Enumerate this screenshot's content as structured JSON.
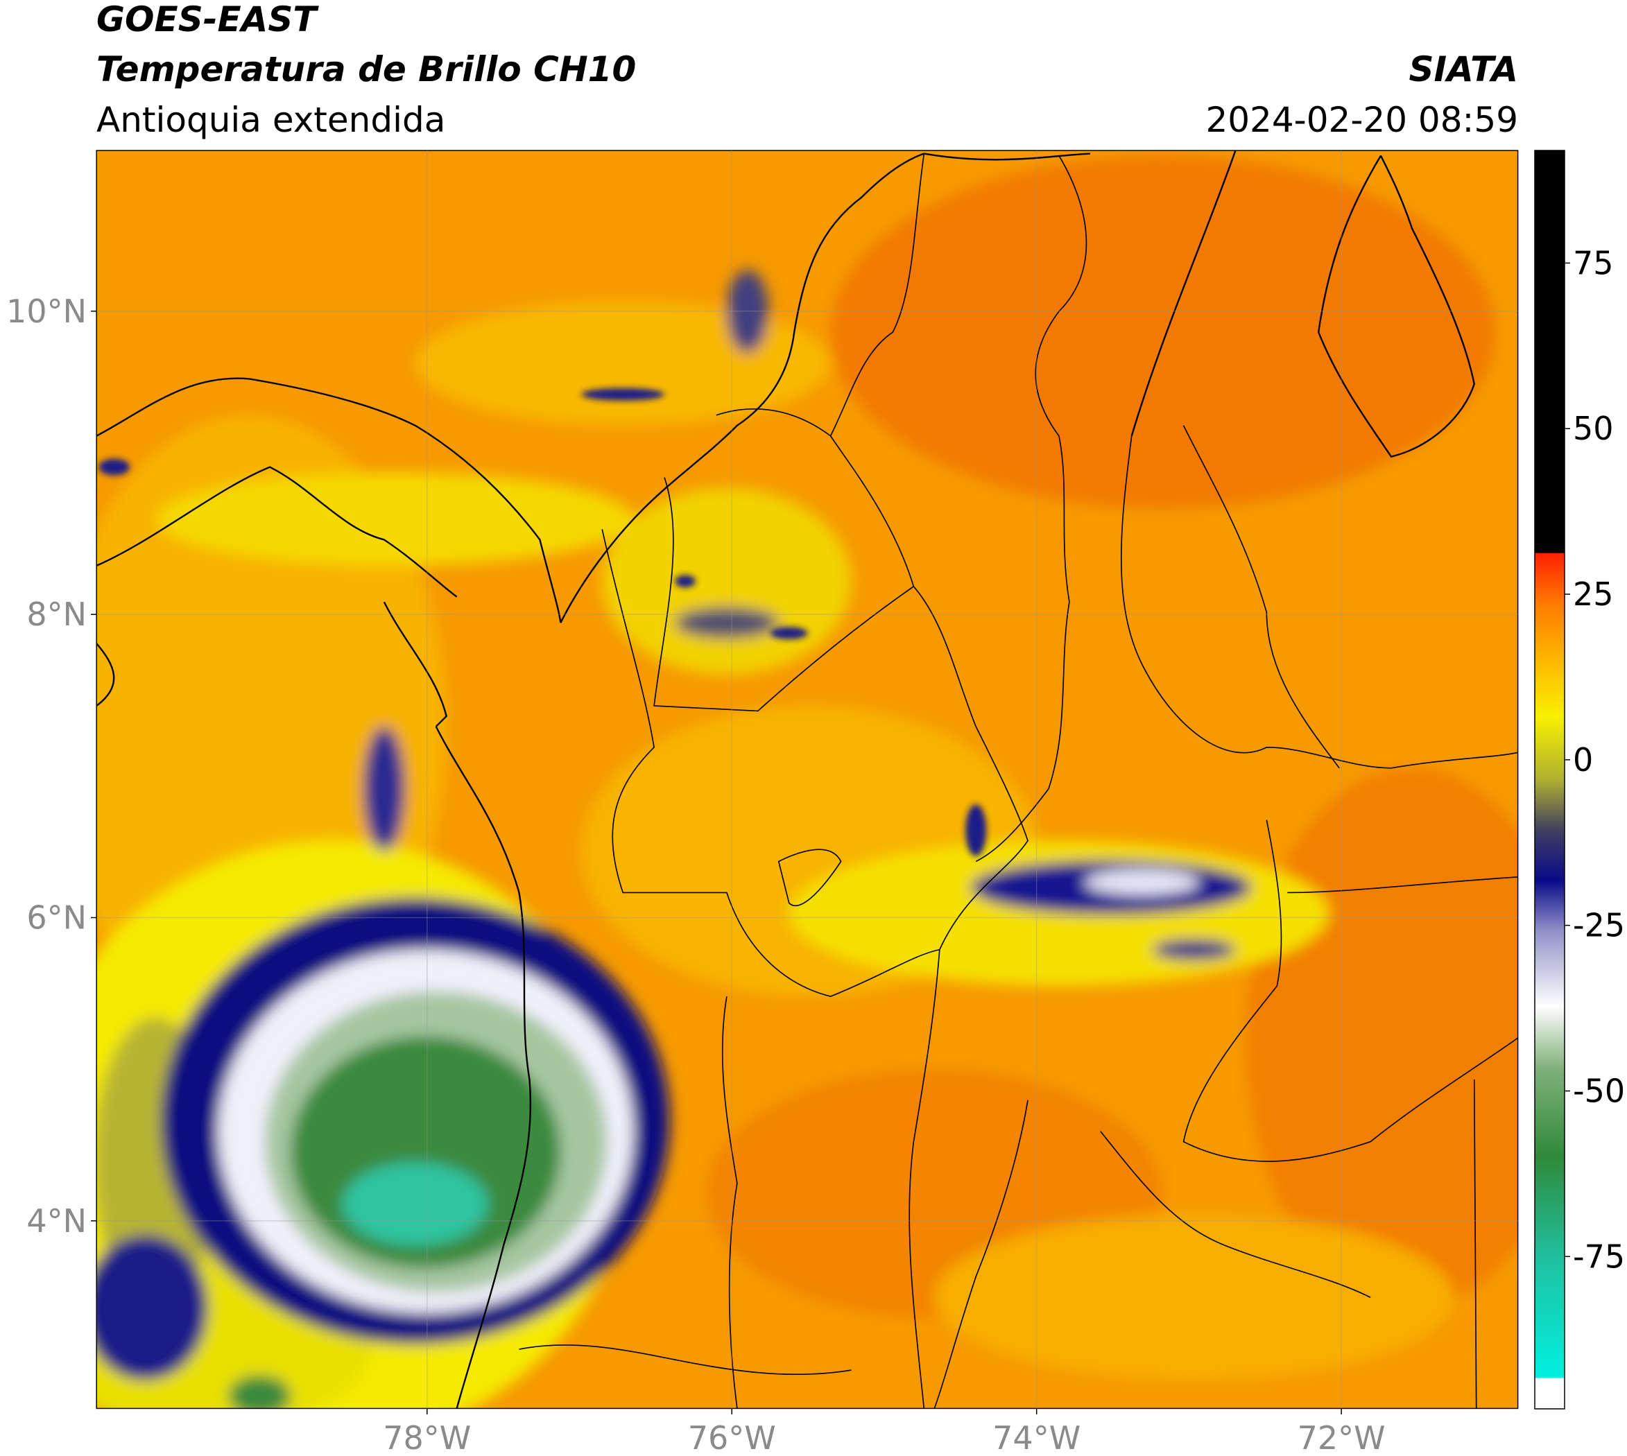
{
  "chart_data": {
    "type": "map",
    "title": "GOES-EAST",
    "subtitle": "Temperatura de Brillo CH10",
    "region": "Antioquia extendida",
    "source": "SIATA",
    "datetime": "2024-02-20 08:59",
    "xlim": [
      -80.17,
      -70.84
    ],
    "ylim": [
      2.76,
      11.06
    ],
    "xticks": [
      {
        "value": -78,
        "label": "78°W"
      },
      {
        "value": -76,
        "label": "76°W"
      },
      {
        "value": -74,
        "label": "74°W"
      },
      {
        "value": -72,
        "label": "72°W"
      }
    ],
    "yticks": [
      {
        "value": 10,
        "label": "10°N"
      },
      {
        "value": 8,
        "label": "8°N"
      },
      {
        "value": 6,
        "label": "6°N"
      },
      {
        "value": 4,
        "label": "4°N"
      }
    ],
    "clim": [
      -98,
      92
    ],
    "cticks": [
      75,
      50,
      25,
      0,
      -25,
      -50,
      -75
    ],
    "grid": true
  }
}
